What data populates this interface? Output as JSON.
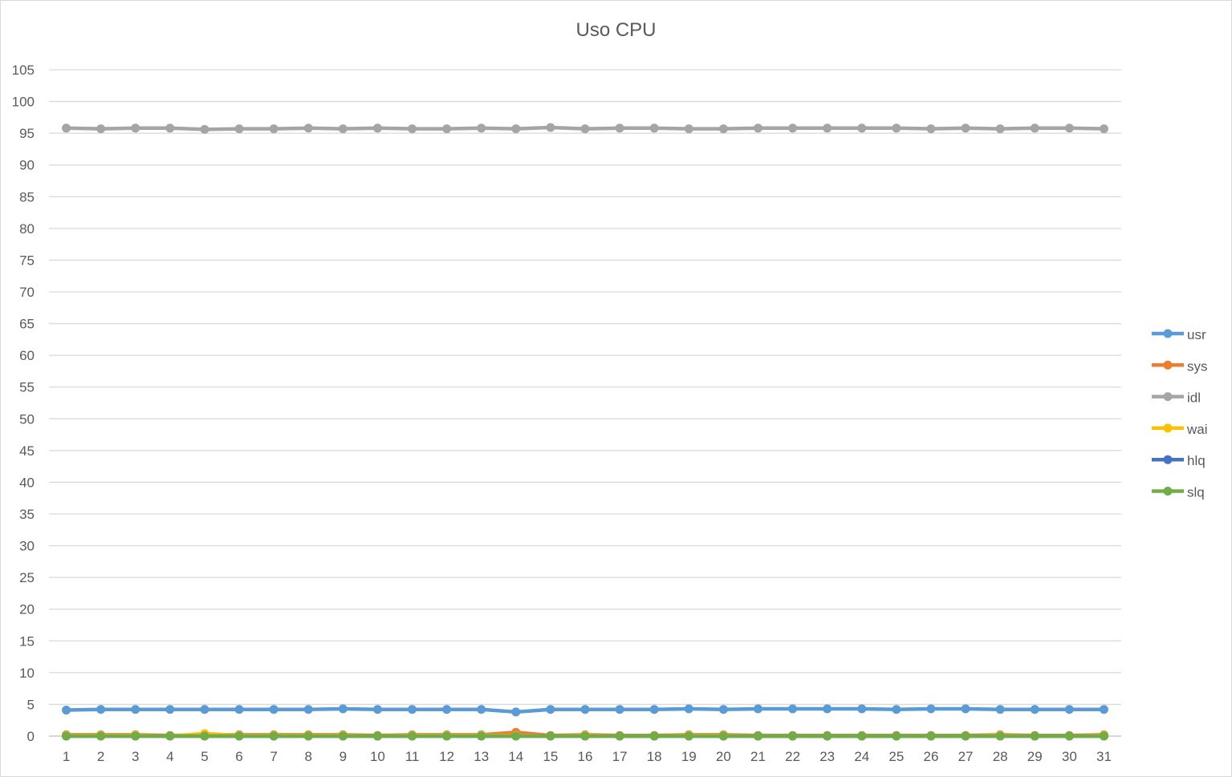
{
  "chart_data": {
    "type": "line",
    "title": "Uso CPU",
    "xlabel": "",
    "ylabel": "",
    "ylim": [
      0,
      105
    ],
    "yticks": [
      0,
      5,
      10,
      15,
      20,
      25,
      30,
      35,
      40,
      45,
      50,
      55,
      60,
      65,
      70,
      75,
      80,
      85,
      90,
      95,
      100,
      105
    ],
    "grid": true,
    "legend_position": "right",
    "categories": [
      "1",
      "2",
      "3",
      "4",
      "5",
      "6",
      "7",
      "8",
      "9",
      "10",
      "11",
      "12",
      "13",
      "14",
      "15",
      "16",
      "17",
      "18",
      "19",
      "20",
      "21",
      "22",
      "23",
      "24",
      "25",
      "26",
      "27",
      "28",
      "29",
      "30",
      "31"
    ],
    "series": [
      {
        "name": "usr",
        "color": "#5B9BD5",
        "values": [
          4.1,
          4.2,
          4.2,
          4.2,
          4.2,
          4.2,
          4.2,
          4.2,
          4.3,
          4.2,
          4.2,
          4.2,
          4.2,
          3.8,
          4.2,
          4.2,
          4.2,
          4.2,
          4.3,
          4.2,
          4.3,
          4.3,
          4.3,
          4.3,
          4.2,
          4.3,
          4.3,
          4.2,
          4.2,
          4.2,
          4.2
        ]
      },
      {
        "name": "sys",
        "color": "#ED7D31",
        "values": [
          0.2,
          0.2,
          0.2,
          0.1,
          0.2,
          0.2,
          0.2,
          0.2,
          0.2,
          0.1,
          0.2,
          0.2,
          0.2,
          0.6,
          0.1,
          0.2,
          0.1,
          0.1,
          0.2,
          0.2,
          0.1,
          0.1,
          0.1,
          0.1,
          0.1,
          0.1,
          0.1,
          0.2,
          0.1,
          0.1,
          0.2
        ]
      },
      {
        "name": "idl",
        "color": "#A5A5A5",
        "values": [
          95.8,
          95.7,
          95.8,
          95.8,
          95.6,
          95.7,
          95.7,
          95.8,
          95.7,
          95.8,
          95.7,
          95.7,
          95.8,
          95.7,
          95.9,
          95.7,
          95.8,
          95.8,
          95.7,
          95.7,
          95.8,
          95.8,
          95.8,
          95.8,
          95.8,
          95.7,
          95.8,
          95.7,
          95.8,
          95.8,
          95.7
        ]
      },
      {
        "name": "wai",
        "color": "#FFC000",
        "values": [
          0.1,
          0.1,
          0.1,
          0.0,
          0.4,
          0.1,
          0.1,
          0.1,
          0.1,
          0.0,
          0.1,
          0.1,
          0.1,
          0.1,
          0.0,
          0.1,
          0.0,
          0.0,
          0.1,
          0.1,
          0.0,
          0.0,
          0.0,
          0.0,
          0.0,
          0.0,
          0.0,
          0.1,
          0.0,
          0.0,
          0.1
        ]
      },
      {
        "name": "hlq",
        "color": "#4472C4",
        "values": [
          0,
          0,
          0,
          0,
          0,
          0,
          0,
          0,
          0,
          0,
          0,
          0,
          0,
          0,
          0,
          0,
          0,
          0,
          0,
          0,
          0,
          0,
          0,
          0,
          0,
          0,
          0,
          0,
          0,
          0,
          0
        ]
      },
      {
        "name": "slq",
        "color": "#70AD47",
        "values": [
          0.0,
          0.0,
          0.0,
          0.0,
          0.0,
          0.0,
          0.0,
          0.0,
          0.0,
          0.0,
          0.0,
          0.0,
          0.0,
          0.0,
          0.0,
          0.0,
          0.0,
          0.0,
          0.0,
          0.0,
          0.0,
          0.0,
          0.0,
          0.0,
          0.0,
          0.0,
          0.0,
          0.0,
          0.0,
          0.0,
          0.0
        ]
      }
    ]
  }
}
